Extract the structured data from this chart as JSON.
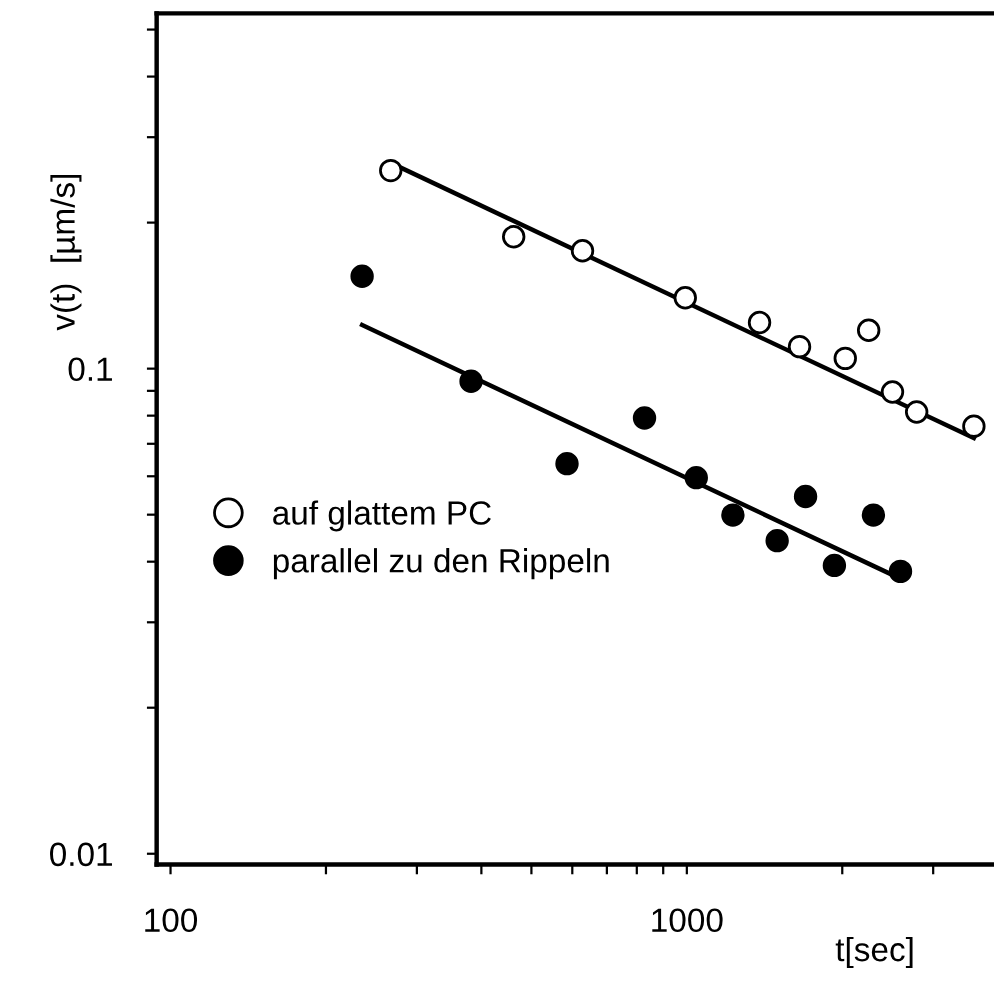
{
  "chart_data": {
    "type": "scatter",
    "xlabel": "t[sec]",
    "ylabel": "v(t)  [µm/s]",
    "log": "xy",
    "grid": false,
    "legend": "bottom left",
    "marker": "circle",
    "xlim": [
      94,
      3900
    ],
    "ylim": [
      0.0095,
      0.54
    ],
    "xticks": [
      100,
      {
        "value": 200,
        "label": null
      },
      {
        "value": 300,
        "label": null
      },
      {
        "value": 400,
        "label": null
      },
      {
        "value": 500,
        "label": null
      },
      {
        "value": 600,
        "label": null
      },
      {
        "value": 700,
        "label": null
      },
      {
        "value": 800,
        "label": null
      },
      {
        "value": 900,
        "label": null
      },
      1000,
      {
        "value": 2000,
        "label": null
      },
      {
        "value": 3000,
        "label": null
      }
    ],
    "yticks": [
      0.01,
      {
        "value": 0.02,
        "label": null
      },
      {
        "value": 0.03,
        "label": null
      },
      {
        "value": 0.04,
        "label": null
      },
      {
        "value": 0.05,
        "label": null
      },
      {
        "value": 0.06,
        "label": null
      },
      {
        "value": 0.07,
        "label": null
      },
      {
        "value": 0.08,
        "label": null
      },
      {
        "value": 0.09,
        "label": null
      },
      0.1,
      {
        "value": 0.2,
        "label": null
      },
      {
        "value": 0.3,
        "label": null
      },
      {
        "value": 0.4,
        "label": null
      },
      {
        "value": 0.5,
        "label": null
      }
    ],
    "series": [
      {
        "name": "auf glattem PC",
        "color": "#ffffff",
        "x": [
          267,
          462,
          628,
          993,
          1383,
          1653,
          2027,
          2250,
          2502,
          2787,
          3597
        ],
        "values": [
          0.256,
          0.187,
          0.175,
          0.14,
          0.1245,
          0.111,
          0.105,
          0.12,
          0.0895,
          0.0814,
          0.0761
        ]
      },
      {
        "name": "parallel zu den Rippeln",
        "color": "#000000",
        "x": [
          235,
          382,
          586,
          828,
          1043,
          1228,
          1698,
          1496,
          2298,
          1931,
          2593
        ],
        "values": [
          0.155,
          0.0942,
          0.0637,
          0.0791,
          0.0596,
          0.0499,
          0.0545,
          0.0442,
          0.0499,
          0.0393,
          0.0382
        ]
      },
      {
        "type": "line",
        "marker": "none",
        "color": "#000000",
        "x": [
          270,
          3597
        ],
        "values": [
          0.264,
          0.0719
        ]
      },
      {
        "type": "line",
        "marker": "none",
        "color": "#000000",
        "x": [
          235,
          2593
        ],
        "values": [
          0.123,
          0.0369
        ]
      }
    ]
  }
}
